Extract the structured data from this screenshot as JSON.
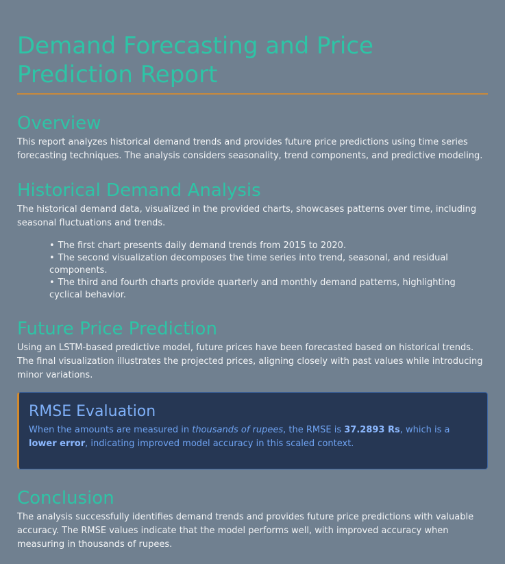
{
  "title": "Demand Forecasting and Price Prediction Report",
  "overview": {
    "heading": "Overview",
    "text": "This report analyzes historical demand trends and provides future price predictions using time series forecasting techniques. The analysis considers seasonality, trend components, and predictive modeling."
  },
  "historical": {
    "heading": "Historical Demand Analysis",
    "text": "The historical demand data, visualized in the provided charts, showcases patterns over time, including seasonal fluctuations and trends.",
    "items": [
      "The first chart presents daily demand trends from 2015 to 2020.",
      "The second visualization decomposes the time series into trend, seasonal, and residual components.",
      "The third and fourth charts provide quarterly and monthly demand patterns, highlighting cyclical behavior."
    ]
  },
  "future": {
    "heading": "Future Price Prediction",
    "text": "Using an LSTM-based predictive model, future prices have been forecasted based on historical trends. The final visualization illustrates the projected prices, aligning closely with past values while introducing minor variations."
  },
  "rmse": {
    "heading": "RMSE Evaluation",
    "part1": "When the amounts are measured in ",
    "emph": "thousands of rupees",
    "part2": ", the RMSE is ",
    "value": "37.2893 Rs",
    "part3": ", which is a ",
    "strong2": "lower error",
    "part4": ", indicating improved model accuracy in this scaled context."
  },
  "conclusion": {
    "heading": "Conclusion",
    "text": "The analysis successfully identifies demand trends and provides future price predictions with valuable accuracy. The RMSE values indicate that the model performs well, with improved accuracy when measuring in thousands of rupees."
  }
}
